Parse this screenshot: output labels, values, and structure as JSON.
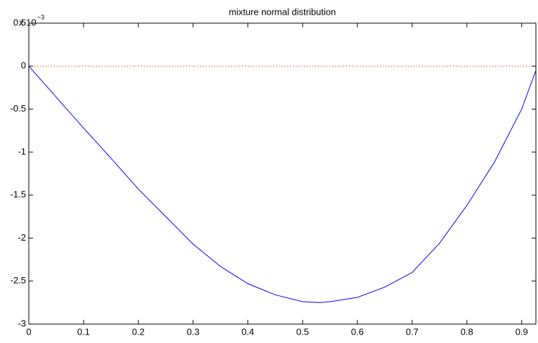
{
  "chart_data": {
    "type": "line",
    "title": "mixture normal distribution",
    "y_multiplier": {
      "base": "x 10",
      "exponent": "−3"
    },
    "x": [
      0,
      0.05,
      0.1,
      0.15,
      0.2,
      0.25,
      0.3,
      0.35,
      0.4,
      0.45,
      0.5,
      0.53,
      0.55,
      0.6,
      0.65,
      0.7,
      0.75,
      0.8,
      0.85,
      0.9,
      0.926
    ],
    "series": [
      {
        "color": "#0000ff",
        "values": [
          0,
          -0.36,
          -0.72,
          -1.07,
          -1.43,
          -1.75,
          -2.07,
          -2.33,
          -2.53,
          -2.66,
          -2.74,
          -2.75,
          -2.74,
          -2.69,
          -2.57,
          -2.4,
          -2.06,
          -1.62,
          -1.12,
          -0.5,
          -0.05
        ]
      }
    ],
    "reference_line": {
      "y": 0,
      "color": "#ff0000",
      "style": "dotted"
    },
    "xlim": [
      0,
      0.926
    ],
    "xticks": [
      0,
      0.1,
      0.2,
      0.3,
      0.4,
      0.5,
      0.6,
      0.7,
      0.8,
      0.9
    ],
    "ylim": [
      -3,
      0.5
    ],
    "yticks": [
      0.5,
      0,
      -0.5,
      -1,
      -1.5,
      -2,
      -2.5,
      -3
    ],
    "grid": false
  }
}
